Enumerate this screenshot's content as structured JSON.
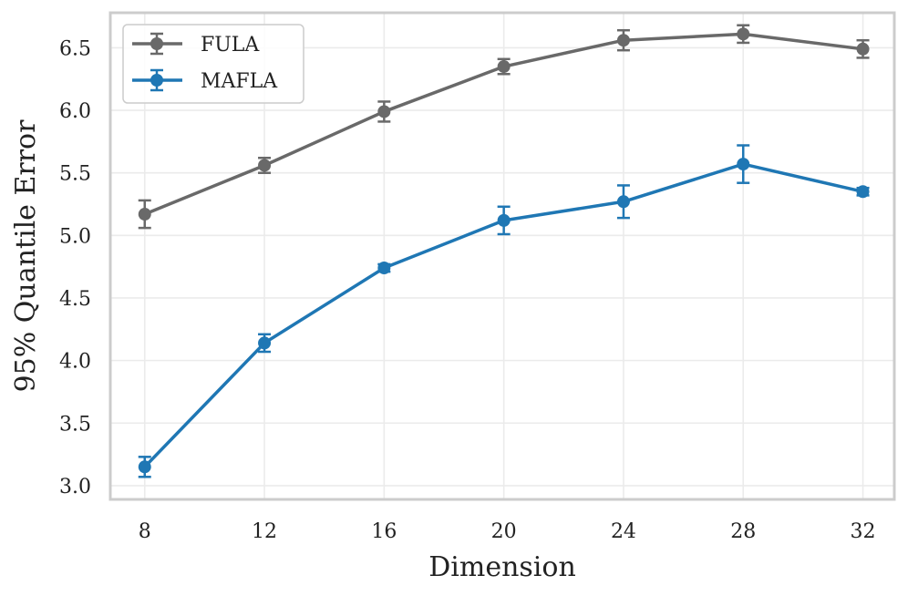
{
  "chart_data": {
    "type": "line",
    "title": "",
    "xlabel": "Dimension",
    "ylabel": "95% Quantile Error",
    "x": [
      8,
      12,
      16,
      20,
      24,
      28,
      32
    ],
    "xticks": [
      "8",
      "12",
      "16",
      "20",
      "24",
      "28",
      "32"
    ],
    "yticks": [
      "3.0",
      "3.5",
      "4.0",
      "4.5",
      "5.0",
      "5.5",
      "6.0",
      "6.5"
    ],
    "xlim": [
      6.85,
      33.05
    ],
    "ylim": [
      2.89,
      6.78
    ],
    "grid": true,
    "legend_position": "top-left",
    "series": [
      {
        "name": "FULA",
        "color": "#696969",
        "values": [
          5.17,
          5.56,
          5.99,
          6.35,
          6.56,
          6.61,
          6.49
        ],
        "errors": [
          0.11,
          0.06,
          0.08,
          0.06,
          0.08,
          0.07,
          0.07
        ]
      },
      {
        "name": "MAFLA",
        "color": "#1f77b4",
        "values": [
          3.15,
          4.14,
          4.74,
          5.12,
          5.27,
          5.57,
          5.35
        ],
        "errors": [
          0.08,
          0.07,
          0.03,
          0.11,
          0.13,
          0.15,
          0.03
        ]
      }
    ]
  }
}
